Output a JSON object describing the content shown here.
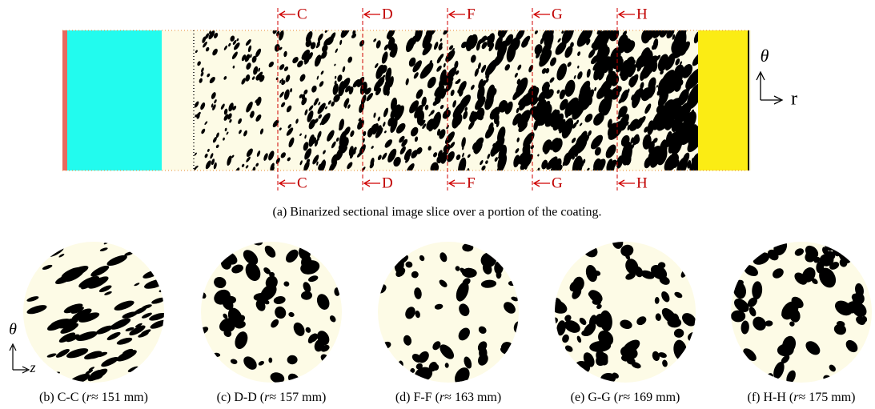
{
  "figure": {
    "sections_top": [
      "C",
      "D",
      "F",
      "G",
      "H"
    ],
    "sections_bottom": [
      "C",
      "D",
      "F",
      "G",
      "H"
    ],
    "axis_a": {
      "theta": "θ",
      "r": "r"
    },
    "caption_a": "(a) Binarized sectional image slice over a portion of the coating.",
    "axis_b": {
      "theta": "θ",
      "z": "z"
    },
    "panels": [
      {
        "caption": [
          "(b) C-C (",
          "r",
          "≈ 151 mm)"
        ]
      },
      {
        "caption": [
          "(c) D-D (",
          "r",
          "≈ 157 mm)"
        ]
      },
      {
        "caption": [
          "(d) F-F (",
          "r",
          "≈ 163 mm)"
        ]
      },
      {
        "caption": [
          "(e) G-G (",
          "r",
          "≈ 169 mm)"
        ]
      },
      {
        "caption": [
          "(f) H-H (",
          "r",
          "≈ 175 mm)"
        ]
      }
    ]
  }
}
